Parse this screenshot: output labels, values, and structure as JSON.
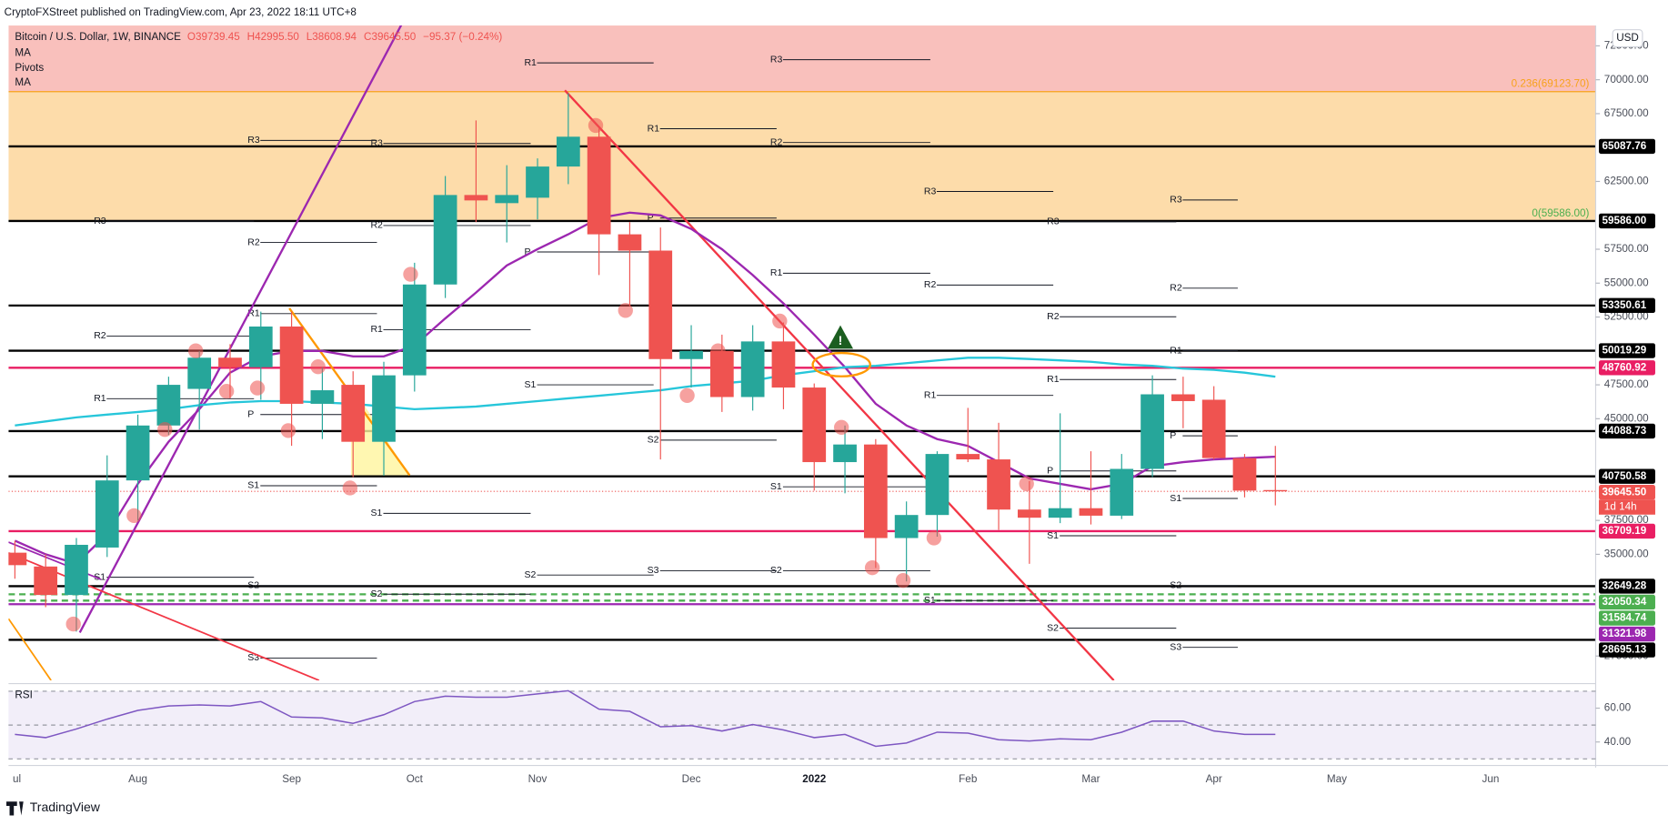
{
  "header": {
    "published": "CryptoFXStreet published on TradingView.com, Apr 23, 2022 18:11 UTC+8"
  },
  "chart_data": {
    "type": "candlestick",
    "symbol": "Bitcoin / U.S. Dollar, 1W, BINANCE",
    "legend": {
      "open": "O39739.45",
      "high": "H42995.50",
      "low": "L38608.94",
      "close": "C39645.50",
      "change": "−95.37 (−0.24%)"
    },
    "indicators": [
      "MA",
      "Pivots",
      "MA"
    ],
    "currency": "USD",
    "up_color": "#26a69a",
    "down_color": "#ef5350",
    "categories": [
      "ul",
      null,
      null,
      null,
      "Aug",
      null,
      null,
      null,
      null,
      "Sep",
      null,
      null,
      null,
      "Oct",
      null,
      null,
      null,
      "Nov",
      null,
      null,
      null,
      null,
      "Dec",
      null,
      null,
      null,
      "2022",
      null,
      null,
      null,
      null,
      "Feb",
      null,
      null,
      null,
      "Mar",
      null,
      null,
      null,
      "Apr",
      null,
      null,
      null,
      "May",
      null,
      null,
      null,
      null,
      "Jun",
      null,
      null
    ],
    "open": [
      35120,
      34100,
      32000,
      35500,
      40450,
      44500,
      47200,
      49500,
      48800,
      51800,
      46100,
      47500,
      43300,
      48200,
      54900,
      61500,
      60900,
      61300,
      63600,
      65800,
      58600,
      57400,
      49400,
      50000,
      46600,
      50700,
      47300,
      41800,
      43100,
      36200,
      37900,
      42400,
      42000,
      38300,
      37700,
      38400,
      37850,
      41300,
      46800,
      46400,
      42100,
      39739.45,
      null,
      null,
      null,
      null,
      null,
      null,
      null,
      null,
      null
    ],
    "high": [
      36000,
      35000,
      36200,
      42300,
      45300,
      48100,
      50000,
      50500,
      52900,
      52900,
      48800,
      48500,
      49200,
      56500,
      62900,
      67000,
      63700,
      64200,
      69000,
      66400,
      59500,
      59100,
      51900,
      51200,
      51900,
      52100,
      47600,
      44500,
      43500,
      38900,
      42600,
      45800,
      44700,
      40400,
      45400,
      42600,
      42400,
      48200,
      48100,
      47400,
      42400,
      42995.5,
      null,
      null,
      null,
      null,
      null,
      null,
      null,
      null,
      null
    ],
    "low": [
      33200,
      31100,
      29300,
      34800,
      37500,
      43800,
      44200,
      46500,
      46400,
      43000,
      43500,
      40700,
      40800,
      47000,
      53900,
      59500,
      58000,
      59700,
      62300,
      55600,
      53300,
      42000,
      47300,
      45500,
      45600,
      45700,
      39700,
      39500,
      34000,
      33000,
      36300,
      41800,
      36800,
      34300,
      37300,
      37200,
      37600,
      40700,
      44300,
      42000,
      39200,
      38608.94,
      null,
      null,
      null,
      null,
      null,
      null,
      null,
      null,
      null
    ],
    "close": [
      34200,
      32000,
      35700,
      40450,
      44500,
      47500,
      49500,
      48800,
      51800,
      46100,
      47100,
      43300,
      48200,
      54900,
      61500,
      61100,
      61500,
      63600,
      65800,
      58600,
      57400,
      49400,
      50000,
      46600,
      50700,
      47300,
      41800,
      43100,
      36200,
      37900,
      42400,
      42000,
      38300,
      37700,
      38400,
      37850,
      41300,
      46800,
      46300,
      42100,
      39700,
      39645.5,
      null,
      null,
      null,
      null,
      null,
      null,
      null,
      null,
      null
    ],
    "series": [
      {
        "name": "MA",
        "color": "#9c27b0",
        "values": [
          36000,
          35000,
          34300,
          36500,
          40200,
          43300,
          45700,
          48400,
          49600,
          50000,
          50000,
          49600,
          49600,
          50400,
          52400,
          54300,
          56300,
          57500,
          58600,
          59800,
          60200,
          60000,
          59000,
          57500,
          55600,
          53500,
          51200,
          48800,
          46100,
          44500,
          43500,
          43000,
          41800,
          40600,
          40200,
          39800,
          40200,
          41500,
          41800,
          42000,
          42100,
          42200,
          null,
          null,
          null,
          null,
          null,
          null,
          null,
          null,
          null
        ]
      },
      {
        "name": "MA",
        "color": "#26c6da",
        "values": [
          44500,
          44800,
          45100,
          45300,
          45500,
          45700,
          46000,
          46200,
          46300,
          46300,
          46200,
          46100,
          45900,
          45700,
          45800,
          45900,
          46100,
          46300,
          46500,
          46700,
          46900,
          47100,
          47400,
          47600,
          47800,
          48200,
          48500,
          48800,
          48900,
          49100,
          49300,
          49500,
          49500,
          49400,
          49300,
          49200,
          49000,
          48900,
          48700,
          48600,
          48400,
          48100,
          null,
          null,
          null,
          null,
          null,
          null,
          null,
          null,
          null
        ]
      }
    ],
    "ylim": [
      25700,
      74000
    ],
    "yticks": [
      {
        "value": 72500,
        "label": "72500.00"
      },
      {
        "value": 70000,
        "label": "70000.00"
      },
      {
        "value": 67500,
        "label": "67500.00"
      },
      {
        "value": 62500,
        "label": "62500.00"
      },
      {
        "value": 57500,
        "label": "57500.00"
      },
      {
        "value": 55000,
        "label": "55000.00"
      },
      {
        "value": 52500,
        "label": "52500.00"
      },
      {
        "value": 47500,
        "label": "47500.00"
      },
      {
        "value": 45000,
        "label": "45000.00"
      },
      {
        "value": 37500,
        "label": "37500.00"
      },
      {
        "value": 35000,
        "label": "35000.00"
      },
      {
        "value": 27500,
        "label": "27500.00"
      }
    ],
    "fib": [
      {
        "value": 69123.7,
        "label": "0.236(69123.70)",
        "color": "#f7a21b",
        "fill": "#f9c0bc"
      },
      {
        "value": 59586.0,
        "label": "0(59586.00)",
        "color": "#4caf50",
        "fill": "#fddcaa"
      }
    ],
    "levels": [
      {
        "value": 65087.76,
        "label": "65087.76",
        "color": "#000000",
        "style": "solid"
      },
      {
        "value": 59586.0,
        "label": "59586.00",
        "color": "#000000",
        "style": "solid"
      },
      {
        "value": 53350.61,
        "label": "53350.61",
        "color": "#000000",
        "style": "solid"
      },
      {
        "value": 50019.29,
        "label": "50019.29",
        "color": "#000000",
        "style": "solid"
      },
      {
        "value": 48760.92,
        "label": "48760.92",
        "color": "#e91e63",
        "style": "solid"
      },
      {
        "value": 44088.73,
        "label": "44088.73",
        "color": "#000000",
        "style": "solid"
      },
      {
        "value": 40750.58,
        "label": "40750.58",
        "color": "#000000",
        "style": "solid"
      },
      {
        "value": 39645.5,
        "label": "39645.50",
        "color": "#ef5350",
        "style": "dotted"
      },
      {
        "value": 36709.19,
        "label": "36709.19",
        "color": "#e91e63",
        "style": "solid"
      },
      {
        "value": 32649.28,
        "label": "32649.28",
        "color": "#000000",
        "style": "solid"
      },
      {
        "value": 32050.34,
        "label": "32050.34",
        "color": "#4caf50",
        "style": "dashed"
      },
      {
        "value": 31584.74,
        "label": "31584.74",
        "color": "#4caf50",
        "style": "dashed"
      },
      {
        "value": 31321.98,
        "label": "31321.98",
        "color": "#9c27b0",
        "style": "solid"
      },
      {
        "value": 28695.13,
        "label": "28695.13",
        "color": "#000000",
        "style": "solid"
      }
    ],
    "countdown": "1d 14h",
    "pivots": [
      {
        "from": 2.5,
        "to": 7.5,
        "levels": [
          {
            "label": "R3",
            "value": 59570
          },
          {
            "label": "R2",
            "value": 51100
          },
          {
            "label": "R1",
            "value": 46480
          },
          {
            "label": "S1",
            "value": 33310
          }
        ]
      },
      {
        "from": 7.5,
        "to": 11.5,
        "levels": [
          {
            "label": "R3",
            "value": 65525
          },
          {
            "label": "R2",
            "value": 58000
          },
          {
            "label": "R1",
            "value": 52750
          },
          {
            "label": "P",
            "value": 45310
          },
          {
            "label": "S1",
            "value": 40060
          },
          {
            "label": "S2",
            "value": 32690
          },
          {
            "label": "S3",
            "value": 27350
          }
        ]
      },
      {
        "from": 11.5,
        "to": 16.5,
        "levels": [
          {
            "label": "R3",
            "value": 65300
          },
          {
            "label": "R2",
            "value": 59250
          },
          {
            "label": "R1",
            "value": 51570
          },
          {
            "label": "S1",
            "value": 38020
          },
          {
            "label": "S2",
            "value": 32060
          }
        ]
      },
      {
        "from": 16.5,
        "to": 20.5,
        "levels": [
          {
            "label": "R1",
            "value": 71246
          },
          {
            "label": "P",
            "value": 57300
          },
          {
            "label": "S1",
            "value": 47500
          },
          {
            "label": "S2",
            "value": 33470
          }
        ]
      },
      {
        "from": 20.5,
        "to": 24.5,
        "levels": [
          {
            "label": "R1",
            "value": 66390
          },
          {
            "label": "P",
            "value": 59800
          },
          {
            "label": "S2",
            "value": 43420
          },
          {
            "label": "S3",
            "value": 33790
          }
        ]
      },
      {
        "from": 24.5,
        "to": 29.5,
        "levels": [
          {
            "label": "R3",
            "value": 71480
          },
          {
            "label": "R2",
            "value": 65370
          },
          {
            "label": "R1",
            "value": 55730
          },
          {
            "label": "S1",
            "value": 39980
          },
          {
            "label": "S2",
            "value": 33790
          }
        ]
      },
      {
        "from": 29.5,
        "to": 33.5,
        "levels": [
          {
            "label": "R3",
            "value": 61760
          },
          {
            "label": "R2",
            "value": 54860
          },
          {
            "label": "R1",
            "value": 46720
          },
          {
            "label": "S1",
            "value": 31590
          }
        ]
      },
      {
        "from": 33.5,
        "to": 37.5,
        "levels": [
          {
            "label": "R3",
            "value": 59520
          },
          {
            "label": "R2",
            "value": 52520
          },
          {
            "label": "R1",
            "value": 47890
          },
          {
            "label": "P",
            "value": 41150
          },
          {
            "label": "S1",
            "value": 36370
          },
          {
            "label": "S2",
            "value": 29550
          }
        ]
      },
      {
        "from": 37.5,
        "to": 39.5,
        "levels": [
          {
            "label": "R3",
            "value": 61130
          },
          {
            "label": "R2",
            "value": 54630
          },
          {
            "label": "R1",
            "value": 50020
          },
          {
            "label": "P",
            "value": 43740
          },
          {
            "label": "S1",
            "value": 39120
          },
          {
            "label": "S2",
            "value": 32690
          },
          {
            "label": "S3",
            "value": 28140
          }
        ]
      }
    ],
    "rsi": {
      "name": "RSI",
      "color": "#7e57c2",
      "values": [
        44.5,
        42.6,
        47.7,
        53.5,
        58.7,
        61.3,
        61.9,
        61.3,
        63.9,
        54.8,
        54.2,
        51,
        56.1,
        63.9,
        67.1,
        66.5,
        66.5,
        68.4,
        70.3,
        59.4,
        58.1,
        49,
        49.7,
        46.5,
        50.3,
        47.1,
        42.6,
        44.5,
        37.4,
        39.4,
        45.8,
        45.2,
        41.3,
        40.6,
        41.9,
        41.3,
        45.8,
        52.3,
        52.3,
        46.5,
        44.5,
        44.5,
        null,
        null,
        null,
        null,
        null,
        null,
        null,
        null,
        null
      ],
      "ylim": [
        28,
        72
      ],
      "band": [
        30,
        70
      ],
      "mid": 50,
      "yticks": [
        {
          "value": 60,
          "label": "60.00"
        },
        {
          "value": 40,
          "label": "40.00"
        }
      ]
    }
  },
  "footer": {
    "brand": "TradingView"
  }
}
